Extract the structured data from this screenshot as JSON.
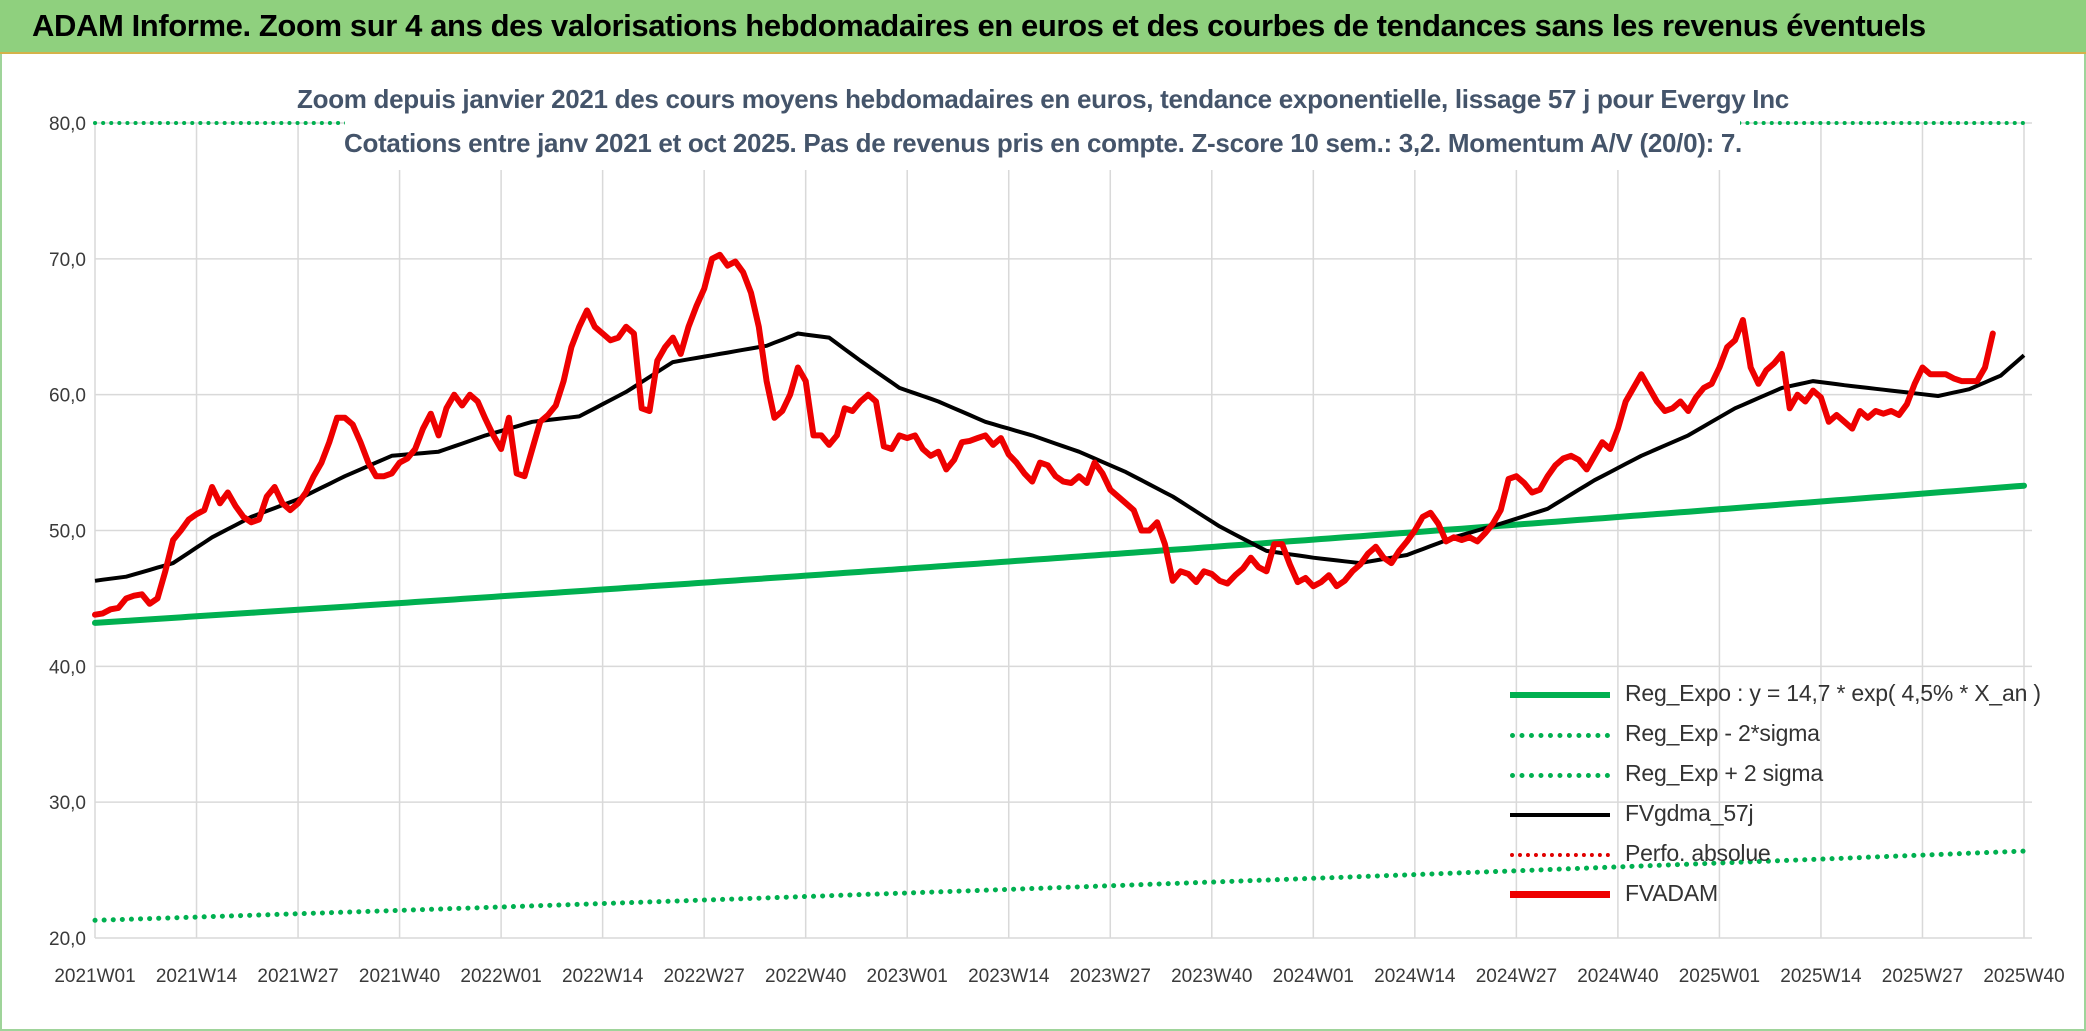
{
  "banner": {
    "title": "ADAM Informe. Zoom sur 4 ans des valorisations hebdomadaires en euros et des courbes de tendances sans les revenus éventuels"
  },
  "chart_data": {
    "type": "line",
    "title": "Zoom depuis janvier 2021 des cours moyens hebdomadaires en euros, tendance exponentielle, lissage 57 j pour Evergy Inc",
    "subtitle": "Cotations entre janv 2021 et oct 2025. Pas de revenus pris en compte. Z-score 10 sem.: 3,2. Momentum A/V (20/0): 7.",
    "ylim": [
      20,
      80
    ],
    "yticks": [
      "20,0",
      "30,0",
      "40,0",
      "50,0",
      "60,0",
      "70,0",
      "80,0"
    ],
    "yticks_values": [
      20,
      30,
      40,
      50,
      60,
      70,
      80
    ],
    "x_count": 248,
    "xticks": [
      "2021W01",
      "2021W14",
      "2021W27",
      "2021W40",
      "2022W01",
      "2022W14",
      "2022W27",
      "2022W40",
      "2023W01",
      "2023W14",
      "2023W27",
      "2023W40",
      "2024W01",
      "2024W14",
      "2024W27",
      "2024W40",
      "2025W01",
      "2025W14",
      "2025W27",
      "2025W40"
    ],
    "xticks_index": [
      0,
      13,
      26,
      39,
      52,
      65,
      78,
      91,
      104,
      117,
      130,
      143,
      156,
      169,
      182,
      195,
      208,
      221,
      234,
      247
    ],
    "colors": {
      "reg": "#00b050",
      "fv": "#000000",
      "adam": "#ee0000",
      "perfo": "#e00000",
      "grid": "#d9d9d9"
    },
    "series": [
      {
        "name": "Reg_Expo : y = 14,7 * exp( 4,5% *  X_an )",
        "style": "solid-green-thick",
        "start": 43.2,
        "end": 53.3
      },
      {
        "name": "Reg_Exp - 2*sigma",
        "style": "dotted-green",
        "start": 21.3,
        "end": 26.4
      },
      {
        "name": "Reg_Exp + 2 sigma",
        "style": "dotted-green",
        "start": 80.0,
        "end": 80.0
      },
      {
        "name": "FVgdma_57j",
        "style": "solid-black",
        "anchors": [
          [
            0,
            46.3
          ],
          [
            4,
            46.6
          ],
          [
            10,
            47.6
          ],
          [
            15,
            49.5
          ],
          [
            20,
            51.0
          ],
          [
            26,
            52.3
          ],
          [
            32,
            54.0
          ],
          [
            38,
            55.5
          ],
          [
            44,
            55.8
          ],
          [
            50,
            57.0
          ],
          [
            56,
            58.0
          ],
          [
            62,
            58.4
          ],
          [
            68,
            60.2
          ],
          [
            74,
            62.4
          ],
          [
            80,
            63.0
          ],
          [
            86,
            63.6
          ],
          [
            90,
            64.5
          ],
          [
            94,
            64.2
          ],
          [
            98,
            62.5
          ],
          [
            103,
            60.5
          ],
          [
            108,
            59.5
          ],
          [
            114,
            58.0
          ],
          [
            120,
            57.0
          ],
          [
            126,
            55.8
          ],
          [
            132,
            54.3
          ],
          [
            138,
            52.5
          ],
          [
            144,
            50.3
          ],
          [
            150,
            48.5
          ],
          [
            156,
            48.0
          ],
          [
            162,
            47.6
          ],
          [
            168,
            48.2
          ],
          [
            174,
            49.5
          ],
          [
            180,
            50.5
          ],
          [
            186,
            51.6
          ],
          [
            192,
            53.7
          ],
          [
            198,
            55.5
          ],
          [
            204,
            57.0
          ],
          [
            210,
            59.0
          ],
          [
            216,
            60.5
          ],
          [
            220,
            61.0
          ],
          [
            224,
            60.7
          ],
          [
            230,
            60.3
          ],
          [
            236,
            59.9
          ],
          [
            240,
            60.4
          ],
          [
            244,
            61.4
          ],
          [
            247,
            62.9
          ]
        ]
      },
      {
        "name": "Perfo. absolue",
        "style": "dotted-red"
      },
      {
        "name": "FVADAM",
        "style": "solid-red-thick",
        "anchors": [
          [
            0,
            43.8
          ],
          [
            1,
            43.9
          ],
          [
            2,
            44.2
          ],
          [
            3,
            44.3
          ],
          [
            4,
            45.0
          ],
          [
            5,
            45.2
          ],
          [
            6,
            45.3
          ],
          [
            7,
            44.6
          ],
          [
            8,
            45.0
          ],
          [
            9,
            47.0
          ],
          [
            10,
            49.3
          ],
          [
            11,
            50.0
          ],
          [
            12,
            50.8
          ],
          [
            13,
            51.2
          ],
          [
            14,
            51.5
          ],
          [
            15,
            53.2
          ],
          [
            16,
            52.0
          ],
          [
            17,
            52.8
          ],
          [
            18,
            51.8
          ],
          [
            19,
            51.0
          ],
          [
            20,
            50.6
          ],
          [
            21,
            50.8
          ],
          [
            22,
            52.5
          ],
          [
            23,
            53.2
          ],
          [
            24,
            52.0
          ],
          [
            25,
            51.5
          ],
          [
            26,
            52.0
          ],
          [
            27,
            52.8
          ],
          [
            28,
            54.0
          ],
          [
            29,
            55.0
          ],
          [
            30,
            56.5
          ],
          [
            31,
            58.3
          ],
          [
            32,
            58.3
          ],
          [
            33,
            57.8
          ],
          [
            34,
            56.5
          ],
          [
            35,
            55.0
          ],
          [
            36,
            54.0
          ],
          [
            37,
            54.0
          ],
          [
            38,
            54.2
          ],
          [
            39,
            55.0
          ],
          [
            40,
            55.3
          ],
          [
            41,
            56.0
          ],
          [
            42,
            57.5
          ],
          [
            43,
            58.6
          ],
          [
            44,
            57.0
          ],
          [
            45,
            59.0
          ],
          [
            46,
            60.0
          ],
          [
            47,
            59.2
          ],
          [
            48,
            60.0
          ],
          [
            49,
            59.5
          ],
          [
            50,
            58.2
          ],
          [
            51,
            57.0
          ],
          [
            52,
            56.0
          ],
          [
            53,
            58.3
          ],
          [
            54,
            54.2
          ],
          [
            55,
            54.0
          ],
          [
            56,
            56.0
          ],
          [
            57,
            58.0
          ],
          [
            58,
            58.5
          ],
          [
            59,
            59.2
          ],
          [
            60,
            61.0
          ],
          [
            61,
            63.5
          ],
          [
            62,
            65.0
          ],
          [
            63,
            66.2
          ],
          [
            64,
            65.0
          ],
          [
            65,
            64.5
          ],
          [
            66,
            64.0
          ],
          [
            67,
            64.2
          ],
          [
            68,
            65.0
          ],
          [
            69,
            64.5
          ],
          [
            70,
            59.0
          ],
          [
            71,
            58.8
          ],
          [
            72,
            62.5
          ],
          [
            73,
            63.5
          ],
          [
            74,
            64.2
          ],
          [
            75,
            63.0
          ],
          [
            76,
            65.0
          ],
          [
            77,
            66.5
          ],
          [
            78,
            67.8
          ],
          [
            79,
            70.0
          ],
          [
            80,
            70.3
          ],
          [
            81,
            69.5
          ],
          [
            82,
            69.8
          ],
          [
            83,
            69.0
          ],
          [
            84,
            67.5
          ],
          [
            85,
            65.0
          ],
          [
            86,
            61.0
          ],
          [
            87,
            58.3
          ],
          [
            88,
            58.8
          ],
          [
            89,
            60.0
          ],
          [
            90,
            62.0
          ],
          [
            91,
            61.0
          ],
          [
            92,
            57.0
          ],
          [
            93,
            57.0
          ],
          [
            94,
            56.3
          ],
          [
            95,
            57.0
          ],
          [
            96,
            59.0
          ],
          [
            97,
            58.8
          ],
          [
            98,
            59.5
          ],
          [
            99,
            60.0
          ],
          [
            100,
            59.5
          ],
          [
            101,
            56.2
          ],
          [
            102,
            56.0
          ],
          [
            103,
            57.0
          ],
          [
            104,
            56.8
          ],
          [
            105,
            57.0
          ],
          [
            106,
            56.0
          ],
          [
            107,
            55.5
          ],
          [
            108,
            55.8
          ],
          [
            109,
            54.5
          ],
          [
            110,
            55.2
          ],
          [
            111,
            56.5
          ],
          [
            112,
            56.6
          ],
          [
            113,
            56.8
          ],
          [
            114,
            57.0
          ],
          [
            115,
            56.3
          ],
          [
            116,
            56.8
          ],
          [
            117,
            55.6
          ],
          [
            118,
            55.0
          ],
          [
            119,
            54.2
          ],
          [
            120,
            53.6
          ],
          [
            121,
            55.0
          ],
          [
            122,
            54.8
          ],
          [
            123,
            54.0
          ],
          [
            124,
            53.6
          ],
          [
            125,
            53.5
          ],
          [
            126,
            54.0
          ],
          [
            127,
            53.5
          ],
          [
            128,
            55.0
          ],
          [
            129,
            54.2
          ],
          [
            130,
            53.0
          ],
          [
            131,
            52.5
          ],
          [
            132,
            52.0
          ],
          [
            133,
            51.5
          ],
          [
            134,
            50.0
          ],
          [
            135,
            50.0
          ],
          [
            136,
            50.6
          ],
          [
            137,
            49.0
          ],
          [
            138,
            46.3
          ],
          [
            139,
            47.0
          ],
          [
            140,
            46.8
          ],
          [
            141,
            46.2
          ],
          [
            142,
            47.0
          ],
          [
            143,
            46.8
          ],
          [
            144,
            46.3
          ],
          [
            145,
            46.1
          ],
          [
            146,
            46.7
          ],
          [
            147,
            47.2
          ],
          [
            148,
            48.0
          ],
          [
            149,
            47.3
          ],
          [
            150,
            47.0
          ],
          [
            151,
            49.0
          ],
          [
            152,
            49.0
          ],
          [
            153,
            47.5
          ],
          [
            154,
            46.2
          ],
          [
            155,
            46.5
          ],
          [
            156,
            45.9
          ],
          [
            157,
            46.2
          ],
          [
            158,
            46.7
          ],
          [
            159,
            45.9
          ],
          [
            160,
            46.3
          ],
          [
            161,
            47.0
          ],
          [
            162,
            47.5
          ],
          [
            163,
            48.3
          ],
          [
            164,
            48.8
          ],
          [
            165,
            48.0
          ],
          [
            166,
            47.6
          ],
          [
            167,
            48.5
          ],
          [
            168,
            49.2
          ],
          [
            169,
            50.0
          ],
          [
            170,
            51.0
          ],
          [
            171,
            51.3
          ],
          [
            172,
            50.5
          ],
          [
            173,
            49.2
          ],
          [
            174,
            49.5
          ],
          [
            175,
            49.3
          ],
          [
            176,
            49.5
          ],
          [
            177,
            49.2
          ],
          [
            178,
            49.8
          ],
          [
            179,
            50.5
          ],
          [
            180,
            51.5
          ],
          [
            181,
            53.8
          ],
          [
            182,
            54.0
          ],
          [
            183,
            53.5
          ],
          [
            184,
            52.8
          ],
          [
            185,
            53.0
          ],
          [
            186,
            54.0
          ],
          [
            187,
            54.8
          ],
          [
            188,
            55.3
          ],
          [
            189,
            55.5
          ],
          [
            190,
            55.2
          ],
          [
            191,
            54.5
          ],
          [
            192,
            55.5
          ],
          [
            193,
            56.5
          ],
          [
            194,
            56.0
          ],
          [
            195,
            57.5
          ],
          [
            196,
            59.5
          ],
          [
            197,
            60.5
          ],
          [
            198,
            61.5
          ],
          [
            199,
            60.5
          ],
          [
            200,
            59.5
          ],
          [
            201,
            58.8
          ],
          [
            202,
            59.0
          ],
          [
            203,
            59.5
          ],
          [
            204,
            58.8
          ],
          [
            205,
            59.8
          ],
          [
            206,
            60.5
          ],
          [
            207,
            60.8
          ],
          [
            208,
            62.0
          ],
          [
            209,
            63.5
          ],
          [
            210,
            64.0
          ],
          [
            211,
            65.5
          ],
          [
            212,
            62.0
          ],
          [
            213,
            60.8
          ],
          [
            214,
            61.8
          ],
          [
            215,
            62.3
          ],
          [
            216,
            63.0
          ],
          [
            217,
            59.0
          ],
          [
            218,
            60.0
          ],
          [
            219,
            59.5
          ],
          [
            220,
            60.3
          ],
          [
            221,
            59.8
          ],
          [
            222,
            58.0
          ],
          [
            223,
            58.5
          ],
          [
            224,
            58.0
          ],
          [
            225,
            57.5
          ],
          [
            226,
            58.8
          ],
          [
            227,
            58.3
          ],
          [
            228,
            58.8
          ],
          [
            229,
            58.6
          ],
          [
            230,
            58.8
          ],
          [
            231,
            58.5
          ],
          [
            232,
            59.3
          ],
          [
            233,
            60.8
          ],
          [
            234,
            62.0
          ],
          [
            235,
            61.5
          ],
          [
            236,
            61.5
          ],
          [
            237,
            61.5
          ],
          [
            238,
            61.2
          ],
          [
            239,
            61.0
          ],
          [
            240,
            61.0
          ],
          [
            241,
            61.0
          ],
          [
            242,
            62.0
          ],
          [
            243,
            64.5
          ]
        ]
      }
    ]
  }
}
